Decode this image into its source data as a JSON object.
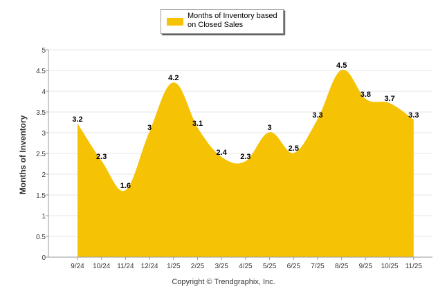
{
  "chart_data": {
    "type": "area",
    "title": "",
    "legend": {
      "label": "Months of Inventory based on Closed Sales",
      "placement": "top-center"
    },
    "categories": [
      "9/24",
      "10/24",
      "11/24",
      "12/24",
      "1/25",
      "2/25",
      "3/25",
      "4/25",
      "5/25",
      "6/25",
      "7/25",
      "8/25",
      "9/25",
      "10/25",
      "11/25"
    ],
    "series": [
      {
        "name": "Months of Inventory based on Closed Sales",
        "values": [
          3.2,
          2.3,
          1.6,
          3,
          4.2,
          3.1,
          2.4,
          2.3,
          3,
          2.5,
          3.3,
          4.5,
          3.8,
          3.7,
          3.3
        ],
        "labels": [
          "3.2",
          "2.3",
          "1.6",
          "3",
          "4.2",
          "3.1",
          "2.4",
          "2.3",
          "3",
          "2.5",
          "3.3",
          "4.5",
          "3.8",
          "3.7",
          "3.3"
        ]
      }
    ],
    "xlabel": "",
    "ylabel": "Months of Inventory",
    "ylim": [
      0,
      5
    ],
    "yticks": [
      "0",
      "0.5",
      "1",
      "1.5",
      "2",
      "2.5",
      "3",
      "3.5",
      "4",
      "4.5",
      "5"
    ],
    "grid": true,
    "color": "#F6C204"
  },
  "footer": {
    "copyright": "Copyright © Trendgraphix, Inc."
  }
}
